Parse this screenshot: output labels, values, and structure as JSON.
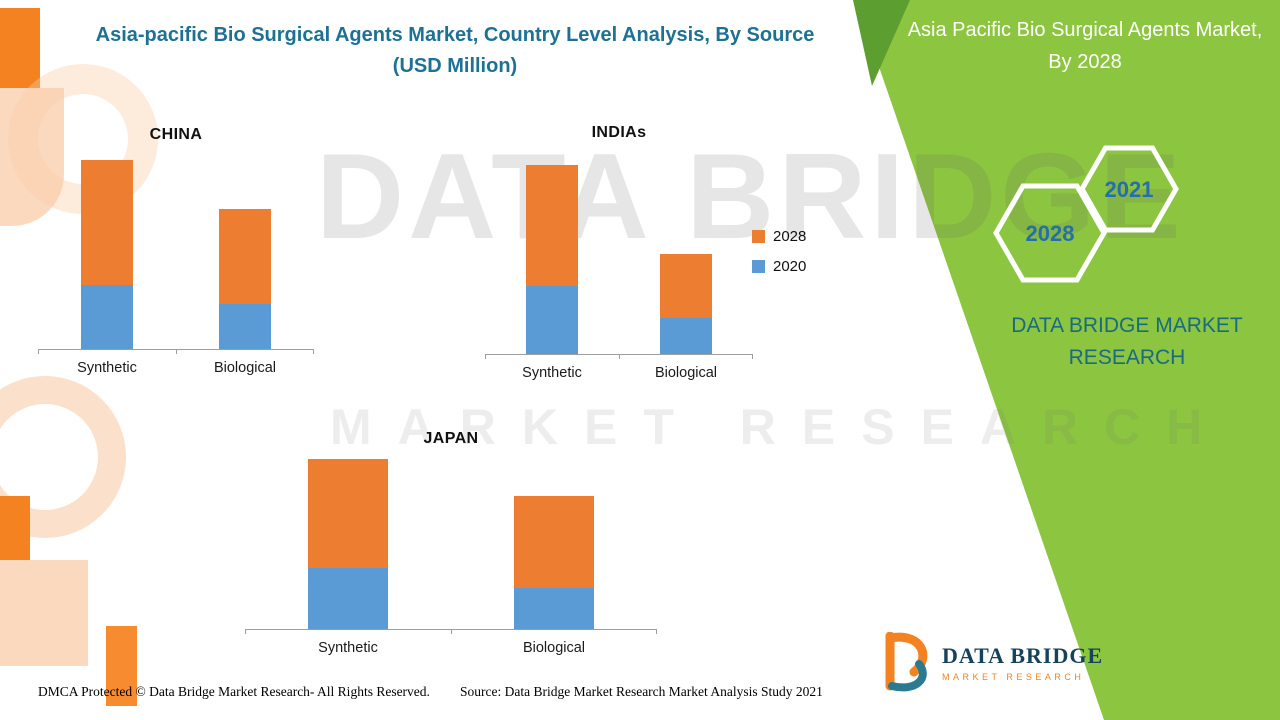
{
  "header": {
    "title_line1": "Asia-pacific Bio Surgical Agents Market, Country Level Analysis, By Source",
    "title_line2": "(USD Million)"
  },
  "right_panel": {
    "title": "Asia Pacific Bio Surgical Agents Market, By 2028",
    "hexagon_years": [
      "2028",
      "2021"
    ],
    "brand_text": "DATA BRIDGE MARKET RESEARCH",
    "colors": {
      "panel_green": "#8CC540",
      "panel_green_dark": "#5C9E2F",
      "year_text": "#2470A8",
      "brand_teal": "#1A6B80"
    }
  },
  "legend": {
    "items": [
      {
        "label": "2028",
        "color": "#ED7D31"
      },
      {
        "label": "2020",
        "color": "#5B9BD5"
      }
    ]
  },
  "watermark": {
    "line1": "DATA BRIDGE",
    "line2": "MARKET RESEARCH"
  },
  "footer": {
    "dmca": "DMCA Protected © Data Bridge Market Research- All Rights Reserved.",
    "source": "Source: Data Bridge Market Research Market Analysis Study 2021"
  },
  "logo": {
    "name": "DATA BRIDGE",
    "subtitle": "MARKET RESEARCH"
  },
  "chart_data": [
    {
      "type": "bar",
      "stacked": true,
      "title": "CHINA",
      "categories": [
        "Synthetic",
        "Biological"
      ],
      "series": [
        {
          "name": "2020",
          "color": "#5B9BD5",
          "values": [
            34,
            24
          ]
        },
        {
          "name": "2028",
          "color": "#ED7D31",
          "values": [
            66,
            50
          ]
        }
      ],
      "ylim": [
        0,
        105
      ],
      "ylabel": "",
      "xlabel": "",
      "note": "no numeric axis labels shown; values estimated from bar heights, relative units"
    },
    {
      "type": "bar",
      "stacked": true,
      "title": "INDIAs",
      "categories": [
        "Synthetic",
        "Biological"
      ],
      "series": [
        {
          "name": "2020",
          "color": "#5B9BD5",
          "values": [
            36,
            19
          ]
        },
        {
          "name": "2028",
          "color": "#ED7D31",
          "values": [
            64,
            34
          ]
        }
      ],
      "ylim": [
        0,
        105
      ],
      "ylabel": "",
      "xlabel": "",
      "note": "no numeric axis labels shown; values estimated from bar heights, relative units"
    },
    {
      "type": "bar",
      "stacked": true,
      "title": "JAPAN",
      "categories": [
        "Synthetic",
        "Biological"
      ],
      "series": [
        {
          "name": "2020",
          "color": "#5B9BD5",
          "values": [
            36,
            24
          ]
        },
        {
          "name": "2028",
          "color": "#ED7D31",
          "values": [
            64,
            54
          ]
        }
      ],
      "ylim": [
        0,
        105
      ],
      "ylabel": "",
      "xlabel": "",
      "note": "no numeric axis labels shown; values estimated from bar heights, relative units"
    }
  ]
}
